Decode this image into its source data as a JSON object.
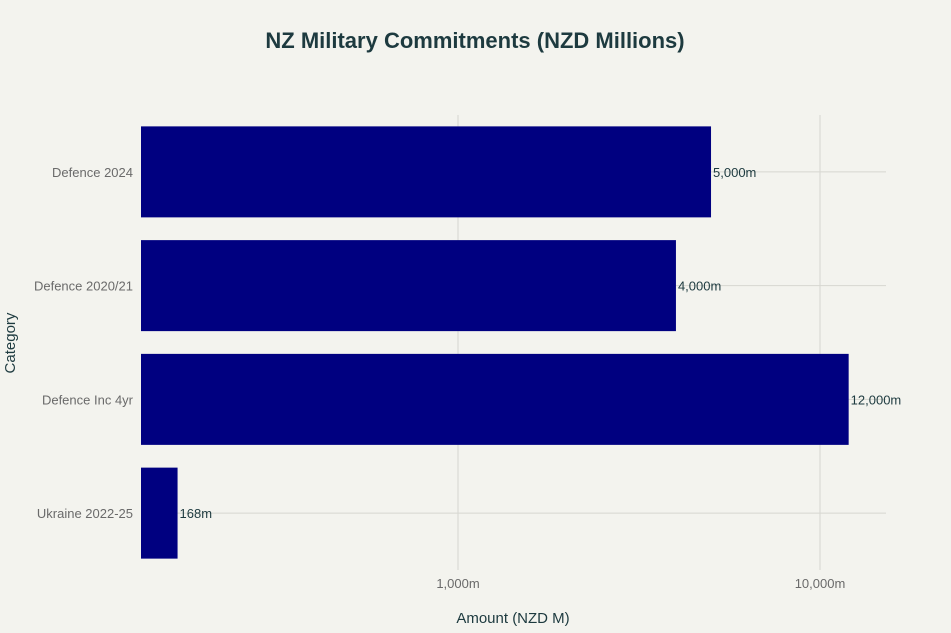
{
  "chart_data": {
    "type": "bar",
    "orientation": "horizontal",
    "title": "NZ Military Commitments (NZD Millions)",
    "xlabel": "Amount (NZD M)",
    "ylabel": "Category",
    "x_scale": "log",
    "xlim": [
      100,
      15000
    ],
    "x_ticks": [
      1000,
      10000
    ],
    "x_tick_labels": [
      "1,000m",
      "10,000m"
    ],
    "grid": true,
    "bar_color": "#000080",
    "categories": [
      "Defence 2024",
      "Defence 2020/21",
      "Defence Inc 4yr",
      "Ukraine 2022-25"
    ],
    "values": [
      5000,
      4000,
      12000,
      168
    ],
    "data_labels": [
      "5,000m",
      "4,000m",
      "12,000m",
      "168m"
    ]
  }
}
